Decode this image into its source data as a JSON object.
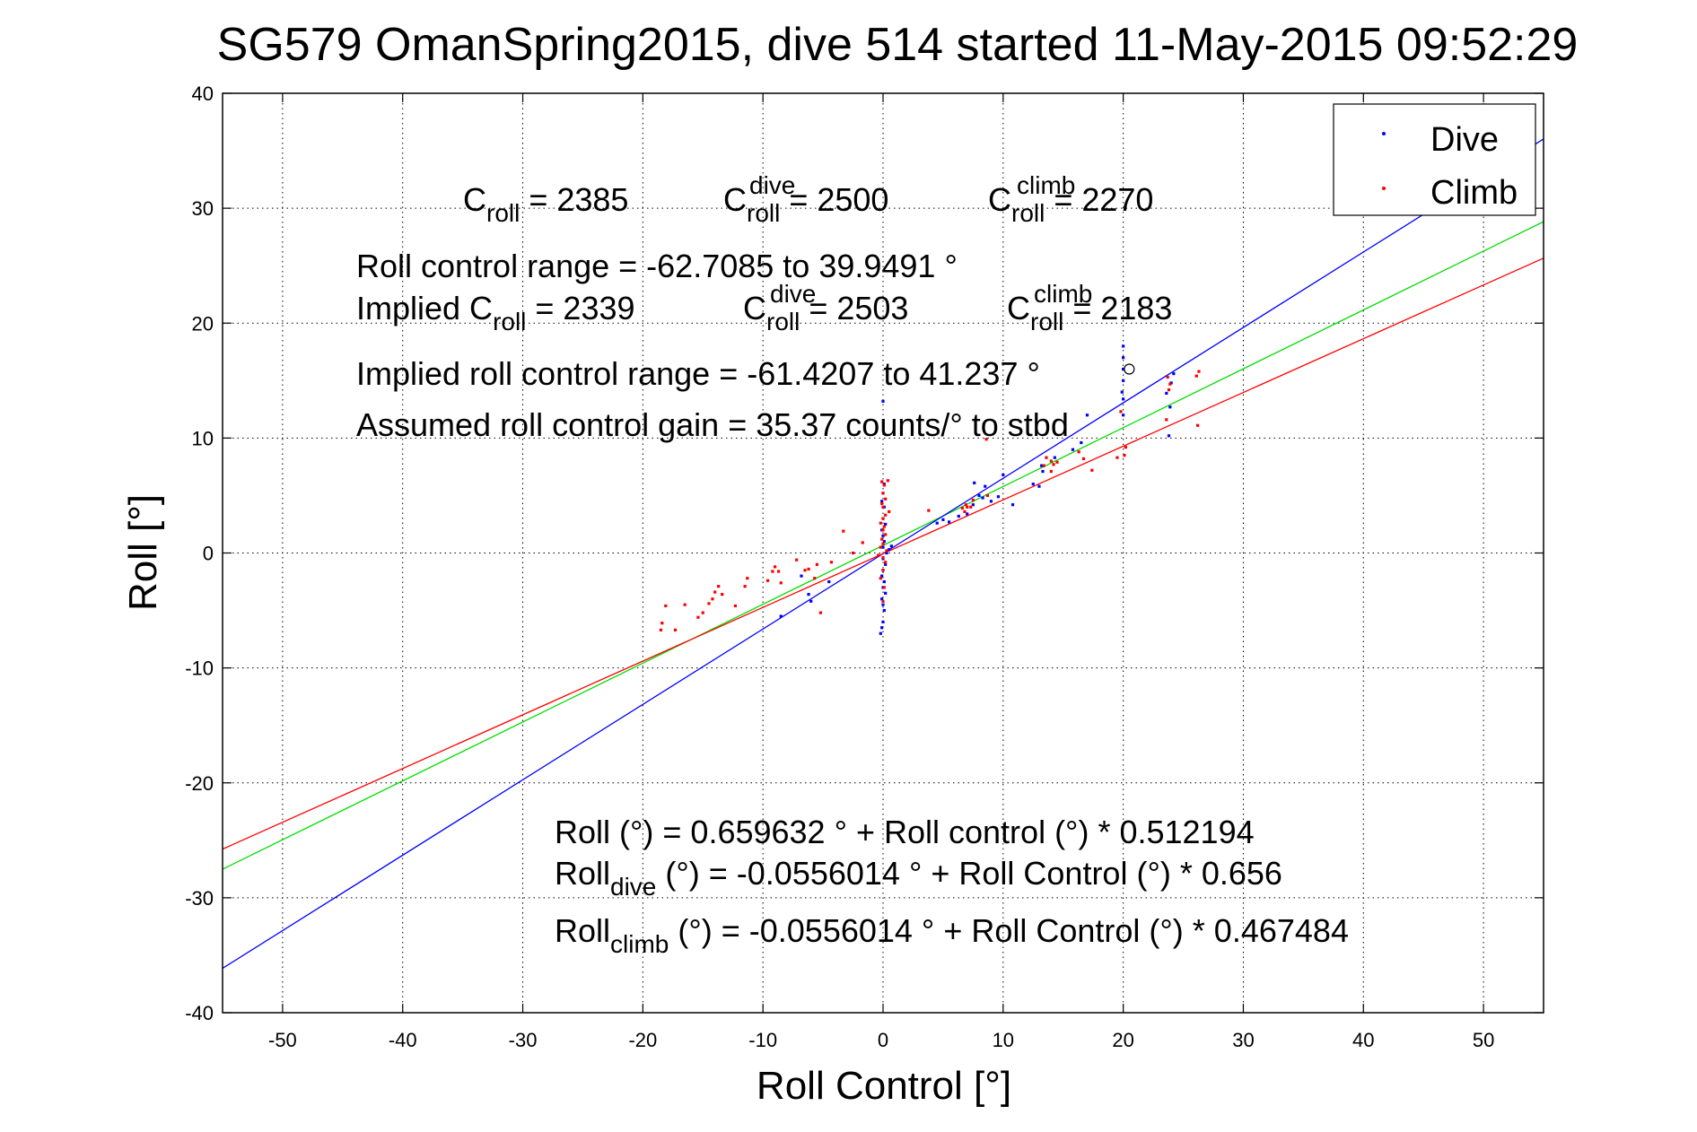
{
  "chart_data": {
    "type": "scatter",
    "title": "SG579 OmanSpring2015, dive 514 started 11-May-2015 09:52:29",
    "xlabel": "Roll Control [°]",
    "ylabel": "Roll [°]",
    "xlim": [
      -55,
      55
    ],
    "ylim": [
      -40,
      40
    ],
    "xticks": [
      -50,
      -40,
      -30,
      -20,
      -10,
      0,
      10,
      20,
      30,
      40,
      50
    ],
    "yticks": [
      -40,
      -30,
      -20,
      -10,
      0,
      10,
      20,
      30,
      40
    ],
    "grid": true,
    "legend": {
      "placement": "top-right",
      "entries": [
        "Dive",
        "Climb"
      ]
    },
    "colors": {
      "dive": "#0000ff",
      "climb": "#ff0000",
      "combined": "#00dd00"
    },
    "series": [
      {
        "name": "Dive",
        "points": [
          [
            -8.5,
            -5.5
          ],
          [
            -6.0,
            -4.2
          ],
          [
            -6.2,
            -3.6
          ],
          [
            -4.5,
            -2.5
          ],
          [
            -6.8,
            -2.0
          ],
          [
            -0.2,
            -7.0
          ],
          [
            -0.1,
            -6.5
          ],
          [
            0.0,
            -6.0
          ],
          [
            0.1,
            -5.0
          ],
          [
            0.0,
            -4.5
          ],
          [
            -0.1,
            -4.0
          ],
          [
            0.2,
            -3.5
          ],
          [
            0.0,
            -3.0
          ],
          [
            0.1,
            -2.5
          ],
          [
            -0.1,
            -2.0
          ],
          [
            0.0,
            -1.5
          ],
          [
            0.2,
            -1.0
          ],
          [
            0.0,
            -0.5
          ],
          [
            0.3,
            0.0
          ],
          [
            0.0,
            0.5
          ],
          [
            0.1,
            1.0
          ],
          [
            0.5,
            0.3
          ],
          [
            0.7,
            0.6
          ],
          [
            0.0,
            1.5
          ],
          [
            -0.1,
            2.0
          ],
          [
            0.2,
            2.5
          ],
          [
            0.0,
            3.0
          ],
          [
            0.1,
            4.0
          ],
          [
            -0.1,
            4.5
          ],
          [
            0.0,
            5.2
          ],
          [
            0.1,
            6.0
          ],
          [
            0.0,
            13.2
          ],
          [
            4.5,
            2.6
          ],
          [
            5.5,
            2.7
          ],
          [
            5.0,
            2.9
          ],
          [
            6.3,
            3.2
          ],
          [
            7.0,
            3.4
          ],
          [
            7.5,
            4.2
          ],
          [
            8.0,
            5.0
          ],
          [
            8.5,
            5.8
          ],
          [
            8.3,
            4.8
          ],
          [
            7.6,
            6.1
          ],
          [
            9.0,
            4.5
          ],
          [
            9.6,
            4.9
          ],
          [
            10.0,
            6.8
          ],
          [
            10.8,
            4.2
          ],
          [
            12.5,
            6.0
          ],
          [
            13.0,
            5.8
          ],
          [
            13.3,
            7.1
          ],
          [
            13.2,
            7.6
          ],
          [
            14.3,
            8.3
          ],
          [
            15.8,
            9.0
          ],
          [
            17.0,
            12.0
          ],
          [
            16.5,
            9.6
          ],
          [
            20.0,
            12.0
          ],
          [
            20.0,
            13.4
          ],
          [
            20.0,
            15.0
          ],
          [
            20.0,
            16.0
          ],
          [
            20.0,
            17.0
          ],
          [
            20.0,
            18.0
          ],
          [
            19.9,
            14.0
          ],
          [
            23.8,
            10.2
          ],
          [
            23.9,
            12.7
          ],
          [
            24.0,
            14.8
          ],
          [
            24.2,
            15.6
          ],
          [
            23.6,
            13.9
          ]
        ]
      },
      {
        "name": "Climb",
        "points": [
          [
            -18.5,
            -6.7
          ],
          [
            -18.4,
            -6.1
          ],
          [
            -17.3,
            -6.7
          ],
          [
            -18.1,
            -4.6
          ],
          [
            -16.5,
            -4.5
          ],
          [
            -15.4,
            -5.6
          ],
          [
            -15.0,
            -5.2
          ],
          [
            -14.5,
            -4.4
          ],
          [
            -14.2,
            -4.0
          ],
          [
            -14.0,
            -3.4
          ],
          [
            -13.4,
            -3.6
          ],
          [
            -13.7,
            -2.9
          ],
          [
            -12.3,
            -4.6
          ],
          [
            -11.5,
            -2.9
          ],
          [
            -11.3,
            -2.2
          ],
          [
            -9.6,
            -2.4
          ],
          [
            -9.2,
            -1.6
          ],
          [
            -9.0,
            -1.2
          ],
          [
            -8.7,
            -1.6
          ],
          [
            -8.5,
            -2.6
          ],
          [
            -7.2,
            -0.6
          ],
          [
            -6.5,
            -1.5
          ],
          [
            -6.2,
            -1.4
          ],
          [
            -5.7,
            -2.2
          ],
          [
            -5.5,
            -1.0
          ],
          [
            -5.2,
            -5.2
          ],
          [
            -4.3,
            -0.8
          ],
          [
            -3.3,
            1.9
          ],
          [
            -2.5,
            0.0
          ],
          [
            -1.7,
            0.9
          ],
          [
            -0.4,
            -0.2
          ],
          [
            0.0,
            -0.4
          ],
          [
            0.3,
            0.2
          ],
          [
            -0.2,
            0.5
          ],
          [
            0.0,
            0.8
          ],
          [
            -0.1,
            1.2
          ],
          [
            0.2,
            1.6
          ],
          [
            0.0,
            2.0
          ],
          [
            0.1,
            2.3
          ],
          [
            -0.2,
            2.6
          ],
          [
            0.0,
            3.0
          ],
          [
            0.2,
            3.3
          ],
          [
            0.5,
            3.6
          ],
          [
            0.0,
            4.0
          ],
          [
            -0.1,
            4.3
          ],
          [
            0.2,
            4.7
          ],
          [
            0.0,
            5.2
          ],
          [
            0.1,
            5.9
          ],
          [
            -0.1,
            6.2
          ],
          [
            0.4,
            6.3
          ],
          [
            0.0,
            -4.2
          ],
          [
            0.1,
            -3.0
          ],
          [
            -0.2,
            -2.2
          ],
          [
            0.0,
            -1.5
          ],
          [
            0.2,
            -0.8
          ],
          [
            3.8,
            3.7
          ],
          [
            6.6,
            3.9
          ],
          [
            6.9,
            4.2
          ],
          [
            7.0,
            4.0
          ],
          [
            6.8,
            3.6
          ],
          [
            7.3,
            4.0
          ],
          [
            7.5,
            4.6
          ],
          [
            8.6,
            9.9
          ],
          [
            8.7,
            5.0
          ],
          [
            13.4,
            7.6
          ],
          [
            13.6,
            8.3
          ],
          [
            14.0,
            8.0
          ],
          [
            14.0,
            7.1
          ],
          [
            14.2,
            7.7
          ],
          [
            14.5,
            7.9
          ],
          [
            16.3,
            8.8
          ],
          [
            16.7,
            8.2
          ],
          [
            17.4,
            7.2
          ],
          [
            19.8,
            12.3
          ],
          [
            20.2,
            9.2
          ],
          [
            20.1,
            8.5
          ],
          [
            23.6,
            11.6
          ],
          [
            23.8,
            14.2
          ],
          [
            23.9,
            14.7
          ],
          [
            23.7,
            15.3
          ],
          [
            26.2,
            11.1
          ],
          [
            26.1,
            15.4
          ],
          [
            26.3,
            15.8
          ],
          [
            19.5,
            8.3
          ]
        ]
      }
    ],
    "fit_lines": [
      {
        "label": "Roll (°) = 0.659632 ° + Roll control (°) * 0.512194",
        "color": "green",
        "intercept": 0.659632,
        "slope": 0.512194
      },
      {
        "label": "Roll_dive (°) = -0.0556014 ° + Roll Control (°) * 0.656",
        "color": "blue",
        "intercept": -0.0556014,
        "slope": 0.656
      },
      {
        "label": "Roll_climb (°) = -0.0556014 ° + Roll Control (°) * 0.467484",
        "color": "red",
        "intercept": -0.0556014,
        "slope": 0.467484
      }
    ],
    "open_marker": {
      "x": 20.5,
      "y": 16.0
    }
  },
  "annotations": {
    "c_roll": {
      "base": "C",
      "sub": "roll",
      "value": " = 2385"
    },
    "c_dive": {
      "base": "C",
      "sup": "dive",
      "sub": "roll",
      "value": " = 2500"
    },
    "c_climb": {
      "base": "C",
      "sup": "climb",
      "sub": "roll",
      "value": " = 2270"
    },
    "roll_range": "Roll control range = -62.7085 to 39.9491 °",
    "implied_prefix": "Implied C",
    "implied_sub": "roll",
    "implied_value": " = 2339",
    "implied_dive": {
      "base": "C",
      "sup": "dive",
      "sub": "roll",
      "value": " = 2503"
    },
    "implied_climb": {
      "base": "C",
      "sup": "climb",
      "sub": "roll",
      "value": " = 2183"
    },
    "implied_range": "Implied roll control range = -61.4207 to 41.237 °",
    "gain": "Assumed roll control gain = 35.37 counts/° to stbd",
    "eq_all": "Roll (°) = 0.659632 ° + Roll control (°) * 0.512194",
    "eq_dive_base": "Roll",
    "eq_dive_sub": "dive",
    "eq_dive_rest": " (°) = -0.0556014 ° + Roll Control (°) * 0.656",
    "eq_climb_base": "Roll",
    "eq_climb_sub": "climb",
    "eq_climb_rest": " (°) = -0.0556014 ° + Roll Control (°) * 0.467484"
  }
}
